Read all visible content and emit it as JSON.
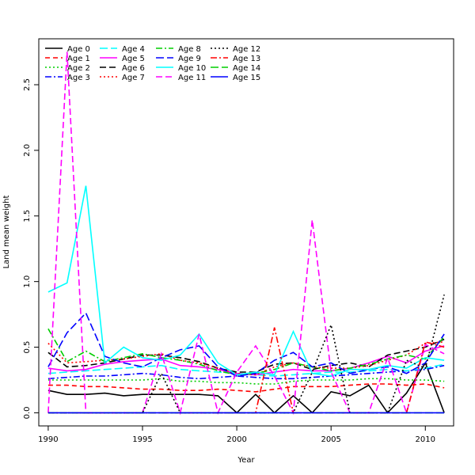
{
  "chart_data": {
    "type": "line",
    "title": "",
    "xlabel": "Year",
    "ylabel": "Land mean weight",
    "xlim": [
      1989.5,
      2011.5
    ],
    "ylim": [
      -0.1,
      2.85
    ],
    "x_ticks": [
      1990,
      1995,
      2000,
      2005,
      2010
    ],
    "y_ticks": [
      0.0,
      0.5,
      1.0,
      1.5,
      2.0,
      2.5
    ],
    "grid": false,
    "legend_position": "top-left",
    "x": [
      1990,
      1991,
      1992,
      1993,
      1994,
      1995,
      1996,
      1997,
      1998,
      1999,
      2000,
      2001,
      2002,
      2003,
      2004,
      2005,
      2006,
      2007,
      2008,
      2009,
      2010,
      2011
    ],
    "series": [
      {
        "name": "Age 0",
        "color": "#000000",
        "dash": "solid",
        "values": [
          0.17,
          0.14,
          0.14,
          0.15,
          0.13,
          0.14,
          0.14,
          0.14,
          0.14,
          0.13,
          0.0,
          0.14,
          0.0,
          0.13,
          0.0,
          0.16,
          0.13,
          0.21,
          0.0,
          0.15,
          0.38,
          0.0
        ]
      },
      {
        "name": "Age 1",
        "color": "#ff0000",
        "dash": "6,4",
        "values": [
          0.21,
          0.21,
          0.2,
          0.2,
          0.19,
          0.18,
          0.18,
          0.17,
          0.17,
          0.18,
          0.17,
          0.16,
          0.18,
          0.2,
          0.2,
          0.2,
          0.21,
          0.22,
          0.22,
          0.21,
          0.22,
          0.19
        ]
      },
      {
        "name": "Age 2",
        "color": "#00cd00",
        "dash": "2,3",
        "values": [
          0.25,
          0.25,
          0.25,
          0.25,
          0.25,
          0.25,
          0.26,
          0.24,
          0.24,
          0.23,
          0.23,
          0.22,
          0.22,
          0.24,
          0.25,
          0.25,
          0.25,
          0.26,
          0.26,
          0.25,
          0.25,
          0.24
        ]
      },
      {
        "name": "Age 3",
        "color": "#0000ff",
        "dash": "8,3,2,3",
        "values": [
          0.26,
          0.27,
          0.28,
          0.28,
          0.29,
          0.3,
          0.29,
          0.27,
          0.26,
          0.27,
          0.28,
          0.27,
          0.26,
          0.26,
          0.27,
          0.28,
          0.29,
          0.3,
          0.31,
          0.32,
          0.33,
          0.36
        ]
      },
      {
        "name": "Age 4",
        "color": "#00ffff",
        "dash": "10,4",
        "values": [
          0.3,
          0.31,
          0.32,
          0.33,
          0.34,
          0.35,
          0.36,
          0.33,
          0.32,
          0.31,
          0.3,
          0.29,
          0.28,
          0.29,
          0.3,
          0.31,
          0.31,
          0.32,
          0.33,
          0.32,
          0.34,
          0.37
        ]
      },
      {
        "name": "Age 5",
        "color": "#ff00ff",
        "dash": "solid",
        "values": [
          0.34,
          0.32,
          0.33,
          0.37,
          0.39,
          0.4,
          0.41,
          0.36,
          0.35,
          0.33,
          0.3,
          0.29,
          0.31,
          0.33,
          0.32,
          0.32,
          0.34,
          0.38,
          0.43,
          0.38,
          0.47,
          0.51
        ]
      },
      {
        "name": "Age 6",
        "color": "#000000",
        "dash": "8,4",
        "values": [
          0.46,
          0.35,
          0.36,
          0.38,
          0.41,
          0.44,
          0.44,
          0.42,
          0.39,
          0.34,
          0.31,
          0.31,
          0.37,
          0.38,
          0.33,
          0.36,
          0.38,
          0.35,
          0.44,
          0.47,
          0.5,
          0.56
        ]
      },
      {
        "name": "Age 7",
        "color": "#ff0000",
        "dash": "2,3",
        "values": [
          0.53,
          0.38,
          0.39,
          0.4,
          0.41,
          0.43,
          0.45,
          0.4,
          0.38,
          0.34,
          0.3,
          0.29,
          0.35,
          0.38,
          0.35,
          0.34,
          0.34,
          0.36,
          0.4,
          0.44,
          0.53,
          0.54
        ]
      },
      {
        "name": "Age 8",
        "color": "#00cd00",
        "dash": "8,3,2,3",
        "values": [
          0.64,
          0.39,
          0.47,
          0.39,
          0.42,
          0.45,
          0.42,
          0.4,
          0.37,
          0.32,
          0.29,
          0.3,
          0.33,
          0.38,
          0.35,
          0.32,
          0.34,
          0.37,
          0.41,
          0.44,
          0.41,
          0.58
        ]
      },
      {
        "name": "Age 9",
        "color": "#0000ff",
        "dash": "10,4",
        "values": [
          0.35,
          0.61,
          0.76,
          0.43,
          0.38,
          0.35,
          0.42,
          0.48,
          0.51,
          0.35,
          0.28,
          0.3,
          0.4,
          0.46,
          0.35,
          0.38,
          0.3,
          0.33,
          0.35,
          0.3,
          0.38,
          0.6
        ]
      },
      {
        "name": "Age 10",
        "color": "#00ffff",
        "dash": "solid",
        "values": [
          0.92,
          0.99,
          1.73,
          0.38,
          0.5,
          0.42,
          0.4,
          0.44,
          0.6,
          0.38,
          0.29,
          0.31,
          0.29,
          0.62,
          0.3,
          0.28,
          0.33,
          0.33,
          0.36,
          0.34,
          0.42,
          0.4
        ]
      },
      {
        "name": "Age 11",
        "color": "#ff00ff",
        "dash": "8,4",
        "values": [
          0.0,
          2.75,
          0.0,
          0.0,
          0.0,
          0.0,
          0.45,
          0.0,
          0.6,
          0.0,
          0.31,
          0.51,
          0.28,
          0.0,
          1.47,
          0.31,
          0.0,
          0.0,
          0.42,
          0.0,
          0.52,
          0.45
        ]
      },
      {
        "name": "Age 12",
        "color": "#000000",
        "dash": "2,3",
        "values": [
          0.0,
          0.0,
          0.0,
          0.0,
          0.0,
          0.0,
          0.3,
          0.0,
          0.0,
          0.0,
          0.0,
          0.0,
          0.0,
          0.0,
          0.31,
          0.67,
          0.0,
          0.0,
          0.0,
          0.4,
          0.34,
          0.9
        ]
      },
      {
        "name": "Age 13",
        "color": "#ff0000",
        "dash": "8,3,2,3",
        "values": [
          0.0,
          0.0,
          0.0,
          0.0,
          0.0,
          0.0,
          0.0,
          0.0,
          0.0,
          0.0,
          0.0,
          0.0,
          0.65,
          0.0,
          0.0,
          0.0,
          0.0,
          0.0,
          0.0,
          0.0,
          0.54,
          0.5
        ]
      },
      {
        "name": "Age 14",
        "color": "#00cd00",
        "dash": "10,4",
        "values": [
          0.0,
          0.0,
          0.0,
          0.0,
          0.0,
          0.0,
          0.0,
          0.0,
          0.0,
          0.0,
          0.0,
          0.0,
          0.0,
          0.0,
          0.0,
          0.0,
          0.0,
          0.0,
          0.0,
          0.0,
          0.0,
          0.0
        ]
      },
      {
        "name": "Age 15",
        "color": "#0000ff",
        "dash": "solid",
        "values": [
          0.0,
          0.0,
          0.0,
          0.0,
          0.0,
          0.0,
          0.0,
          0.0,
          0.0,
          0.0,
          0.0,
          0.0,
          0.0,
          0.0,
          0.0,
          0.0,
          0.0,
          0.0,
          0.0,
          0.0,
          0.0,
          0.0
        ]
      }
    ]
  }
}
